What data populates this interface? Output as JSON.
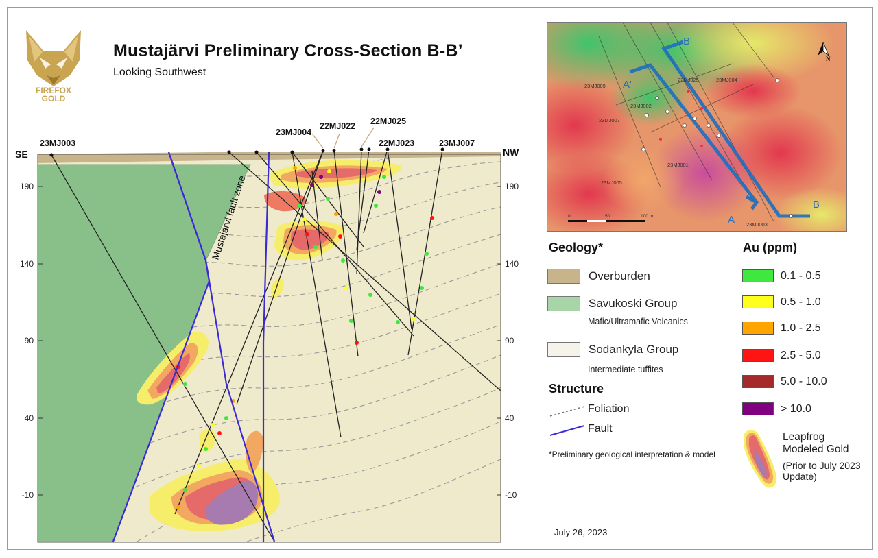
{
  "logo": {
    "line1": "FIREFOX",
    "line2": "GOLD"
  },
  "title": "Mustajärvi Preliminary Cross-Section B-B’",
  "subtitle": "Looking Southwest",
  "section": {
    "end_left": "SE",
    "end_right": "NW",
    "y_ticks": [
      "190",
      "140",
      "90",
      "40",
      "-10"
    ],
    "fault_zone_label": "Mustajärvi fault zone",
    "drillholes": [
      "23MJ003",
      "23MJ004",
      "22MJ022",
      "22MJ025",
      "22MJ023",
      "23MJ007"
    ]
  },
  "map": {
    "labels": {
      "b_prime": "B'",
      "a_prime": "A'",
      "a": "A",
      "b": "B",
      "north": "N"
    },
    "holes": [
      "23MJ009",
      "22MJ025",
      "23MJ004",
      "23MJ002",
      "23MJ007",
      "23MJ001",
      "23MJ005",
      "23MJ003"
    ],
    "scale": [
      "0",
      "50",
      "100 m"
    ]
  },
  "legend": {
    "geology_title": "Geology*",
    "geology": [
      {
        "label": "Overburden",
        "sub": "",
        "color": "#c8b48a"
      },
      {
        "label": "Savukoski Group",
        "sub": "Mafic/Ultramafic Volcanics",
        "color": "#a8d5a8"
      },
      {
        "label": "Sodankyla Group",
        "sub": "Intermediate tuffites",
        "color": "#f6f4ea"
      }
    ],
    "structure_title": "Structure",
    "foliation": "Foliation",
    "fault": "Fault",
    "note": "*Preliminary geological interpretation & model",
    "au_title": "Au (ppm)",
    "au": [
      {
        "label": "0.1 - 0.5",
        "color": "#3ee83e"
      },
      {
        "label": "0.5 - 1.0",
        "color": "#ffff1e"
      },
      {
        "label": "1.0 - 2.5",
        "color": "#ffa500"
      },
      {
        "label": "2.5 - 5.0",
        "color": "#ff1414"
      },
      {
        "label": "5.0 - 10.0",
        "color": "#a52a2a"
      },
      {
        "label": "> 10.0",
        "color": "#800080"
      }
    ],
    "leapfrog": [
      "Leapfrog",
      "Modeled Gold"
    ],
    "leapfrog_note": [
      "(Prior to July 2023",
      "Update)"
    ]
  },
  "date": "July 26, 2023"
}
